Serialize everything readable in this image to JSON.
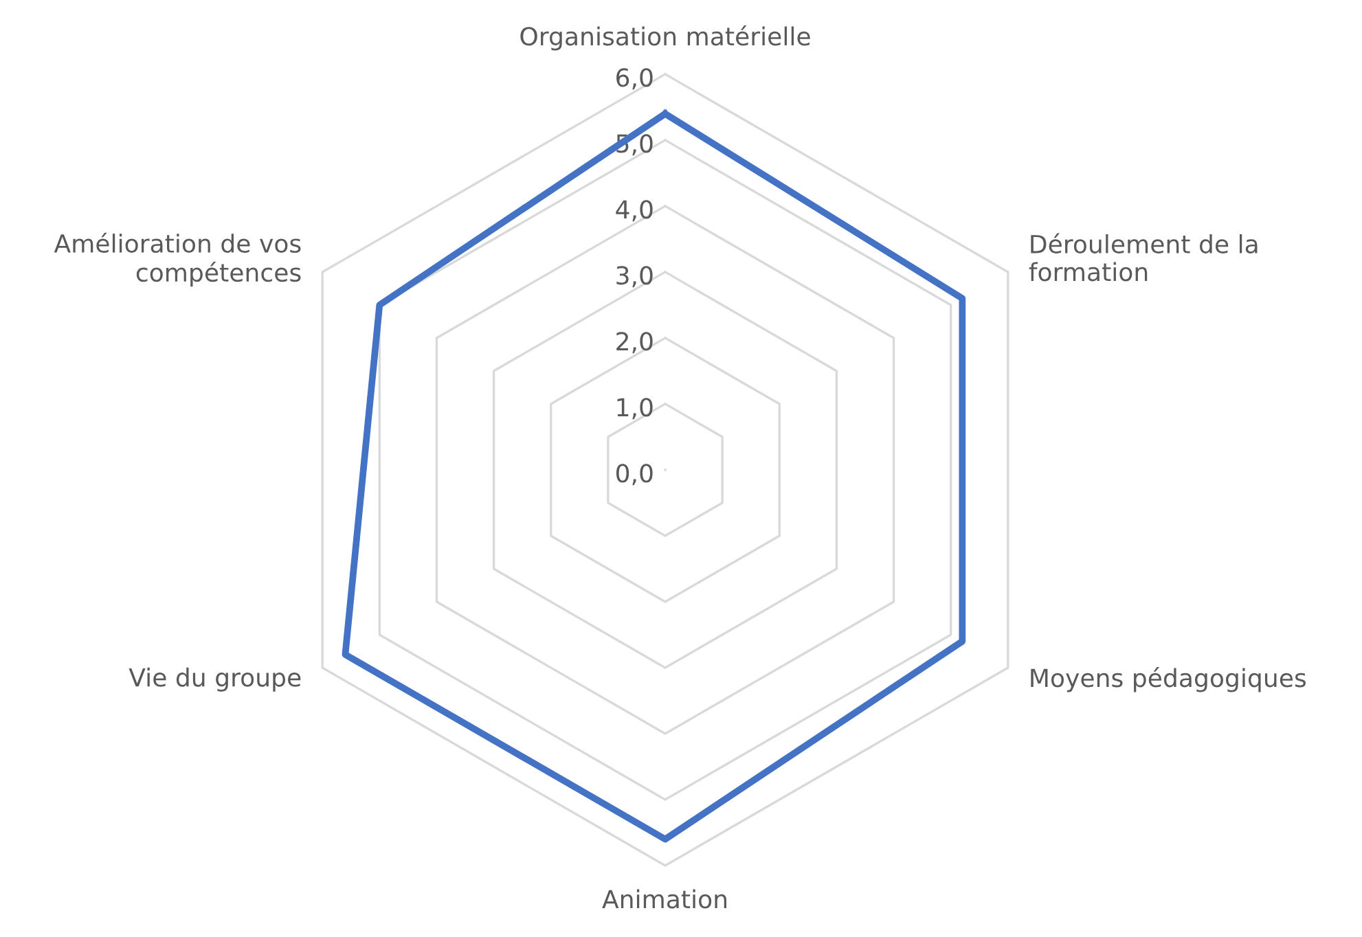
{
  "chart_data": {
    "type": "radar",
    "categories": [
      "Organisation matérielle",
      "Déroulement de la formation",
      "Moyens pédagogiques",
      "Animation",
      "Vie du groupe",
      "Amélioration de vos compétences"
    ],
    "series": [
      {
        "color": "#4472c4",
        "values": [
          5.4,
          5.2,
          5.2,
          5.6,
          5.6,
          5.0
        ]
      }
    ],
    "ylim": [
      0,
      6
    ],
    "yticks": [
      {
        "value": 0,
        "label": "0,0"
      },
      {
        "value": 1,
        "label": "1,0"
      },
      {
        "value": 2,
        "label": "2,0"
      },
      {
        "value": 3,
        "label": "3,0"
      },
      {
        "value": 4,
        "label": "4,0"
      },
      {
        "value": 5,
        "label": "5,0"
      },
      {
        "value": 6,
        "label": "6,0"
      }
    ],
    "grid": true,
    "marker": "none",
    "line_style": "solid"
  }
}
